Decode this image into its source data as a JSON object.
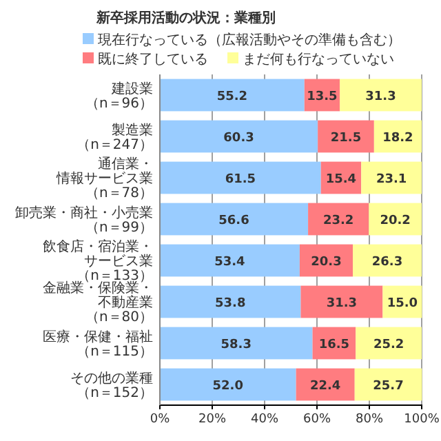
{
  "chart_data": {
    "type": "bar",
    "orientation": "horizontal",
    "stacked": true,
    "title": "新卒採用活動の状況：業種別",
    "categories": [
      "建設業（n＝96）",
      "製造業（n＝247）",
      "通信業・情報サービス業（n＝78）",
      "卸売業・商社・小売業（n＝99）",
      "飲食店・宿泊業・サービス業（n＝133）",
      "金融業・保険業・不動産業（n＝80）",
      "医療・保健・福祉（n＝115）",
      "その他の業種（n＝152）"
    ],
    "series": [
      {
        "name": "現在行なっている（広報活動やその準備も含む）",
        "color": "#99ccff",
        "values": [
          55.2,
          60.3,
          61.5,
          56.6,
          53.4,
          53.8,
          58.3,
          52.0
        ],
        "value_labels": [
          "55.2",
          "60.3",
          "61.5",
          "56.6",
          "53.4",
          "53.8",
          "58.3",
          "52.0"
        ]
      },
      {
        "name": "既に終了している",
        "color": "#ff7c80",
        "values": [
          13.5,
          21.5,
          15.4,
          23.2,
          20.3,
          31.3,
          16.5,
          22.4
        ],
        "value_labels": [
          "13.5",
          "21.5",
          "15.4",
          "23.2",
          "20.3",
          "31.3",
          "16.5",
          "22.4"
        ]
      },
      {
        "name": "まだ何も行なっていない",
        "color": "#ffff99",
        "values": [
          31.3,
          18.2,
          23.1,
          20.2,
          26.3,
          15.0,
          25.2,
          25.7
        ],
        "value_labels": [
          "31.3",
          "18.2",
          "23.1",
          "20.2",
          "26.3",
          "15.0",
          "25.2",
          "25.7"
        ]
      }
    ],
    "xlim": [
      0,
      100
    ],
    "xticks": [
      {
        "value": 0,
        "label": "0%"
      },
      {
        "value": 20,
        "label": "20%"
      },
      {
        "value": 40,
        "label": "40%"
      },
      {
        "value": 60,
        "label": "60%"
      },
      {
        "value": 80,
        "label": "80%"
      },
      {
        "value": 100,
        "label": "100%"
      }
    ],
    "grid": "x",
    "legend": "top"
  }
}
